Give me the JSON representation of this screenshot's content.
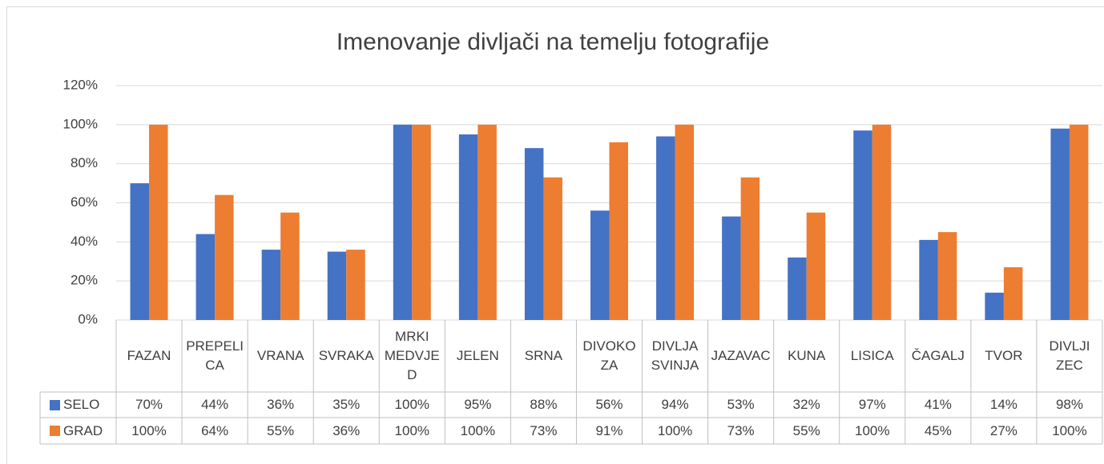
{
  "chart_data": {
    "type": "bar",
    "title": "Imenovanje divljači na temelju fotografije",
    "categories": [
      "FAZAN",
      "PREPELICA",
      "VRANA",
      "SVRAKA",
      "MRKI MEDVJED",
      "JELEN",
      "SRNA",
      "DIVOKOZA",
      "DIVLJA SVINJA",
      "JAZAVAC",
      "KUNA",
      "LISICA",
      "ČAGALJ",
      "TVOR",
      "DIVLJI ZEC"
    ],
    "series": [
      {
        "name": "SELO",
        "color": "#4472c4",
        "values": [
          70,
          44,
          36,
          35,
          100,
          95,
          88,
          56,
          94,
          53,
          32,
          97,
          41,
          14,
          98
        ],
        "value_labels": [
          "70%",
          "44%",
          "36%",
          "35%",
          "100%",
          "95%",
          "88%",
          "56%",
          "94%",
          "53%",
          "32%",
          "97%",
          "41%",
          "14%",
          "98%"
        ]
      },
      {
        "name": "GRAD",
        "color": "#ed7d31",
        "values": [
          100,
          64,
          55,
          36,
          100,
          100,
          73,
          91,
          100,
          73,
          55,
          100,
          45,
          27,
          100
        ],
        "value_labels": [
          "100%",
          "64%",
          "55%",
          "36%",
          "100%",
          "100%",
          "73%",
          "91%",
          "100%",
          "73%",
          "55%",
          "100%",
          "45%",
          "27%",
          "100%"
        ]
      }
    ],
    "ylim": [
      0,
      120
    ],
    "yticks": [
      {
        "value": 0,
        "label": "0%"
      },
      {
        "value": 20,
        "label": "20%"
      },
      {
        "value": 40,
        "label": "40%"
      },
      {
        "value": 60,
        "label": "60%"
      },
      {
        "value": 80,
        "label": "80%"
      },
      {
        "value": 100,
        "label": "100%"
      },
      {
        "value": 120,
        "label": "120%"
      }
    ],
    "grid": true
  }
}
